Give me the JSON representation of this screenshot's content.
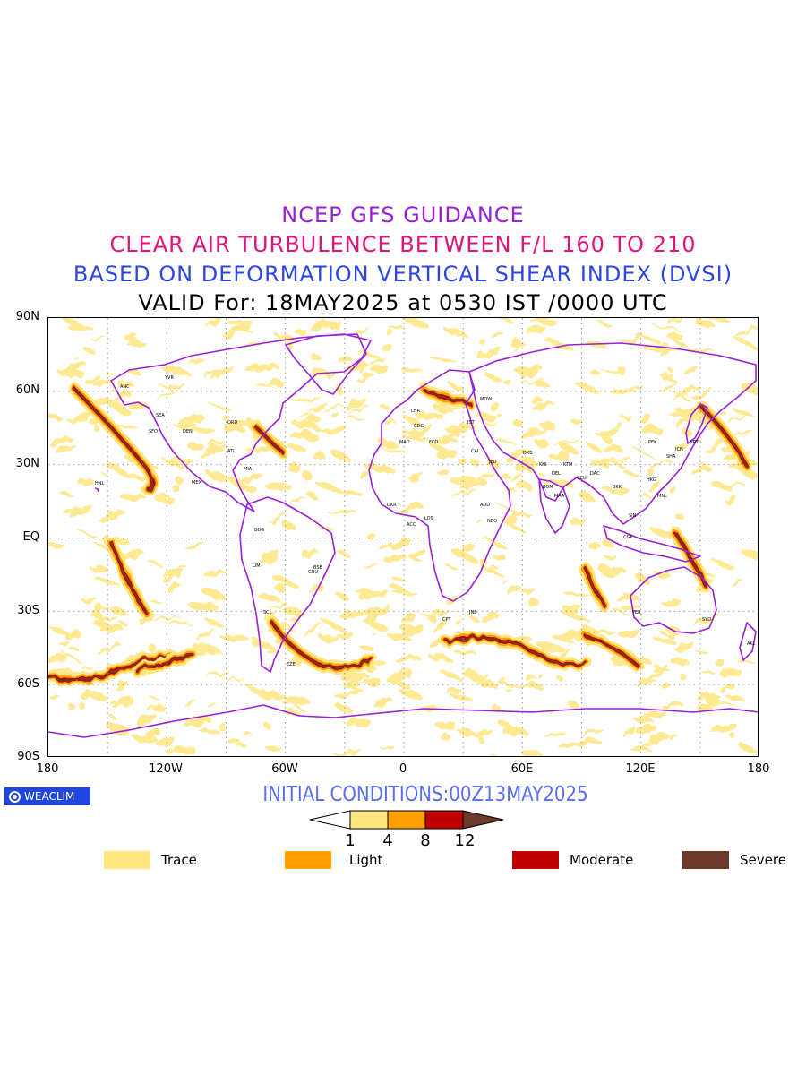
{
  "titles": {
    "line1": "NCEP GFS GUIDANCE",
    "line2": "CLEAR AIR TURBULENCE BETWEEN F/L 160 TO 210",
    "line3": "BASED ON DEFORMATION VERTICAL SHEAR INDEX (DVSI)",
    "line4": "VALID For: 18MAY2025 at 0530 IST /0000 UTC"
  },
  "axes": {
    "lat_ticks": [
      "90N",
      "60N",
      "30N",
      "EQ",
      "30S",
      "60S",
      "90S"
    ],
    "lon_ticks": [
      "180",
      "120W",
      "60W",
      "0",
      "60E",
      "120E",
      "180"
    ],
    "grid": true
  },
  "branding": {
    "badge_text": "WEACLIM"
  },
  "initial_conditions": "INITIAL CONDITIONS:00Z13MAY2025",
  "colorbar": {
    "ticks": [
      "1",
      "4",
      "8",
      "12"
    ],
    "colors": [
      "#ffffff",
      "#ffe680",
      "#ffa000",
      "#c00000",
      "#6b3a2a"
    ]
  },
  "legend": [
    {
      "label": "Trace",
      "color": "#ffe680"
    },
    {
      "label": "Light",
      "color": "#ffa000"
    },
    {
      "label": "Moderate",
      "color": "#c00000"
    },
    {
      "label": "Severe",
      "color": "#6b3a2a"
    }
  ],
  "colors": {
    "coastline": "#9b1fd6",
    "trace": "#ffe680",
    "light": "#ffa000",
    "moderate": "#c00000",
    "severe": "#6b3a2a"
  },
  "station_labels": [
    "ANC",
    "YVR",
    "SEA",
    "SFO",
    "DEN",
    "ORD",
    "ATL",
    "MIA",
    "MEX",
    "HNL",
    "BOG",
    "LIM",
    "SCL",
    "EZE",
    "GRU",
    "BSB",
    "LHR",
    "CDG",
    "MAD",
    "FCO",
    "IST",
    "MOW",
    "CAI",
    "JED",
    "DXB",
    "KHI",
    "DEL",
    "BOM",
    "MAA",
    "CCU",
    "DAC",
    "KTM",
    "BKK",
    "SIN",
    "CGK",
    "HKG",
    "PEK",
    "SHA",
    "ICN",
    "NRT",
    "MNL",
    "PER",
    "SYD",
    "AKL",
    "JNB",
    "CPT",
    "NBO",
    "ADD",
    "LOS",
    "ACC",
    "DKR"
  ]
}
